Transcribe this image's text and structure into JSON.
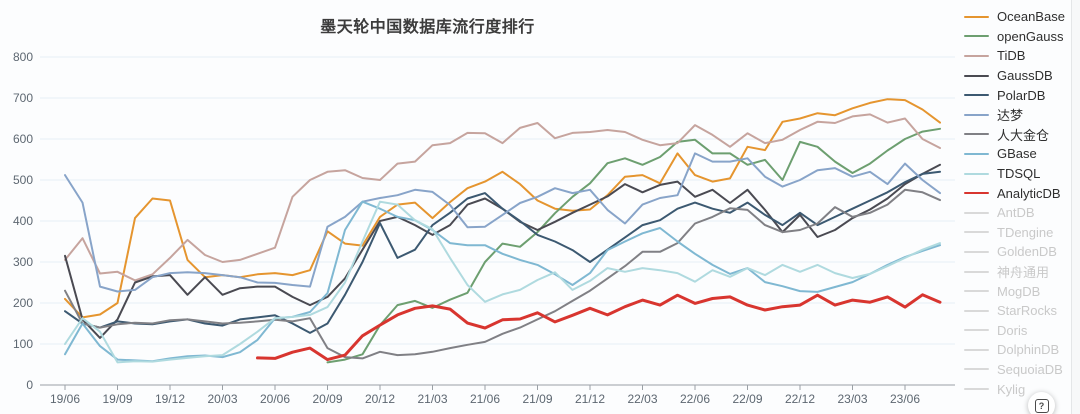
{
  "chart": {
    "title": "墨天轮中国数据库流行度排行"
  },
  "help": {
    "label": "?"
  },
  "colors": {
    "disabled_legend_text": "#c9c9c9",
    "grid_line": "#e6eef6",
    "axis_line": "#9aa0a6",
    "tick_label": "#5d6771"
  },
  "chart_data": {
    "type": "line",
    "title": "墨天轮中国数据库流行度排行",
    "grid": "horizontal",
    "legend_position": "right",
    "ylim": [
      0,
      800
    ],
    "y_ticks": [
      0,
      100,
      200,
      300,
      400,
      500,
      600,
      700,
      800
    ],
    "x_tick_every": 3,
    "x_labels": [
      "19/06",
      "19/07",
      "19/08",
      "19/09",
      "19/10",
      "19/11",
      "19/12",
      "20/01",
      "20/02",
      "20/03",
      "20/04",
      "20/05",
      "20/06",
      "20/07",
      "20/08",
      "20/09",
      "20/10",
      "20/11",
      "20/12",
      "21/01",
      "21/02",
      "21/03",
      "21/04",
      "21/05",
      "21/06",
      "21/07",
      "21/08",
      "21/09",
      "21/10",
      "21/11",
      "21/12",
      "22/01",
      "22/02",
      "22/03",
      "22/04",
      "22/05",
      "22/06",
      "22/07",
      "22/08",
      "22/09",
      "22/10",
      "22/11",
      "22/12",
      "23/01",
      "23/02",
      "23/03",
      "23/04",
      "23/05",
      "23/06",
      "23/07",
      "23/08"
    ],
    "series": [
      {
        "name": "OceanBase",
        "color": "#E5952F",
        "line_width": 2,
        "values": [
          210,
          165,
          172,
          200,
          407,
          455,
          450,
          305,
          263,
          268,
          263,
          270,
          273,
          268,
          280,
          375,
          345,
          340,
          410,
          440,
          445,
          407,
          446,
          480,
          496,
          520,
          490,
          450,
          430,
          425,
          428,
          463,
          508,
          512,
          492,
          565,
          512,
          496,
          504,
          581,
          573,
          642,
          650,
          663,
          658,
          675,
          688,
          697,
          695,
          672,
          640
        ]
      },
      {
        "name": "openGauss",
        "color": "#6D9F70",
        "line_width": 2,
        "values": [
          null,
          null,
          null,
          null,
          null,
          null,
          null,
          null,
          null,
          null,
          null,
          null,
          null,
          null,
          null,
          55,
          62,
          75,
          146,
          195,
          205,
          188,
          208,
          225,
          300,
          345,
          337,
          373,
          419,
          459,
          492,
          541,
          553,
          537,
          556,
          593,
          598,
          565,
          565,
          537,
          549,
          500,
          593,
          581,
          545,
          517,
          540,
          572,
          600,
          618,
          625
        ]
      },
      {
        "name": "TiDB",
        "color": "#C6A49E",
        "line_width": 2,
        "values": [
          305,
          358,
          272,
          276,
          255,
          270,
          310,
          354,
          317,
          300,
          305,
          320,
          335,
          459,
          500,
          520,
          524,
          505,
          500,
          540,
          545,
          585,
          590,
          615,
          614,
          590,
          627,
          639,
          602,
          615,
          617,
          622,
          617,
          598,
          585,
          590,
          634,
          610,
          581,
          614,
          590,
          598,
          622,
          642,
          639,
          655,
          660,
          640,
          650,
          600,
          578
        ]
      },
      {
        "name": "GaussDB",
        "color": "#4A4A52",
        "line_width": 2,
        "values": [
          315,
          160,
          115,
          160,
          250,
          265,
          268,
          220,
          263,
          220,
          236,
          240,
          240,
          215,
          195,
          215,
          260,
          330,
          400,
          410,
          390,
          366,
          390,
          440,
          455,
          430,
          398,
          378,
          398,
          420,
          440,
          460,
          490,
          470,
          488,
          496,
          459,
          476,
          444,
          476,
          427,
          373,
          415,
          361,
          378,
          407,
          428,
          455,
          490,
          515,
          537
        ]
      },
      {
        "name": "PolarDB",
        "color": "#3C5971",
        "line_width": 2,
        "values": [
          180,
          150,
          140,
          155,
          150,
          148,
          155,
          160,
          150,
          145,
          160,
          165,
          170,
          150,
          127,
          150,
          220,
          300,
          395,
          310,
          330,
          390,
          420,
          455,
          468,
          430,
          400,
          366,
          350,
          329,
          300,
          330,
          360,
          390,
          402,
          430,
          445,
          430,
          420,
          445,
          415,
          390,
          420,
          390,
          410,
          430,
          450,
          470,
          495,
          515,
          520
        ]
      },
      {
        "name": "达梦",
        "color": "#88A4C9",
        "line_width": 2,
        "values": [
          512,
          445,
          240,
          228,
          232,
          263,
          273,
          275,
          273,
          268,
          263,
          250,
          249,
          244,
          240,
          386,
          410,
          447,
          456,
          463,
          476,
          471,
          439,
          385,
          386,
          415,
          444,
          459,
          480,
          468,
          476,
          427,
          394,
          440,
          456,
          463,
          565,
          545,
          545,
          553,
          508,
          484,
          500,
          524,
          529,
          508,
          520,
          490,
          540,
          500,
          468
        ]
      },
      {
        "name": "人大金仓",
        "color": "#808085",
        "line_width": 2,
        "values": [
          230,
          150,
          140,
          148,
          152,
          150,
          158,
          160,
          155,
          150,
          152,
          155,
          159,
          155,
          163,
          90,
          68,
          65,
          81,
          73,
          75,
          81,
          90,
          98,
          105,
          125,
          140,
          160,
          180,
          205,
          230,
          260,
          290,
          325,
          325,
          346,
          394,
          410,
          431,
          427,
          390,
          373,
          378,
          394,
          434,
          410,
          420,
          440,
          476,
          470,
          451
        ]
      },
      {
        "name": "GBase",
        "color": "#7FB8D2",
        "line_width": 2,
        "values": [
          75,
          150,
          95,
          62,
          60,
          58,
          65,
          70,
          72,
          68,
          80,
          110,
          163,
          166,
          178,
          224,
          378,
          447,
          430,
          410,
          402,
          378,
          346,
          341,
          341,
          320,
          305,
          293,
          270,
          244,
          273,
          329,
          350,
          370,
          383,
          350,
          320,
          293,
          271,
          285,
          251,
          241,
          229,
          227,
          239,
          251,
          271,
          293,
          312,
          327,
          341
        ]
      },
      {
        "name": "TDSQL",
        "color": "#AFDADF",
        "line_width": 2,
        "values": [
          100,
          163,
          130,
          55,
          58,
          57,
          62,
          66,
          70,
          73,
          100,
          130,
          163,
          166,
          171,
          190,
          250,
          350,
          447,
          440,
          402,
          380,
          310,
          244,
          203,
          221,
          232,
          256,
          275,
          232,
          254,
          285,
          276,
          285,
          280,
          273,
          252,
          280,
          264,
          285,
          268,
          293,
          276,
          293,
          273,
          261,
          271,
          290,
          310,
          330,
          346
        ]
      },
      {
        "name": "AnalyticDB",
        "color": "#D8352F",
        "line_width": 3,
        "values": [
          null,
          null,
          null,
          null,
          null,
          null,
          null,
          null,
          null,
          null,
          null,
          66,
          65,
          80,
          90,
          62,
          73,
          120,
          146,
          171,
          187,
          193,
          185,
          151,
          139,
          159,
          161,
          176,
          154,
          170,
          187,
          171,
          191,
          207,
          195,
          219,
          199,
          211,
          215,
          195,
          183,
          191,
          195,
          219,
          195,
          207,
          202,
          215,
          190,
          220,
          202
        ]
      }
    ],
    "disabled_series": [
      "AntDB",
      "TDengine",
      "GoldenDB",
      "神舟通用",
      "MogDB",
      "StarRocks",
      "Doris",
      "DolphinDB",
      "SequoiaDB",
      "Kylig"
    ]
  }
}
